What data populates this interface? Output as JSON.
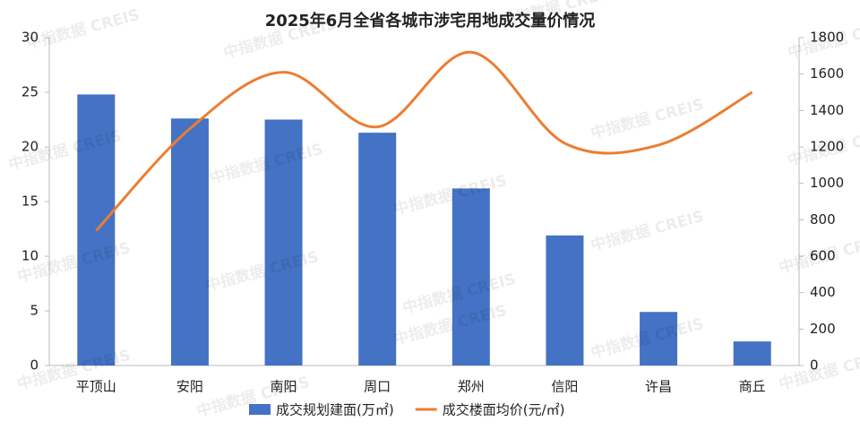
{
  "chart_data": {
    "type": "bar_line",
    "title": "2025年6月全省各城市涉宅用地成交量价情况",
    "watermark": "中指数据 CREIS",
    "categories": [
      "平顶山",
      "安阳",
      "南阳",
      "周口",
      "郑州",
      "信阳",
      "许昌",
      "商丘"
    ],
    "series": [
      {
        "name": "成交规划建面(万㎡)",
        "color": "#4472c4",
        "type": "bar",
        "values": [
          24.8,
          22.6,
          22.5,
          21.3,
          16.2,
          11.9,
          4.9,
          2.2
        ]
      },
      {
        "name": "成交楼面均价(元/㎡)",
        "color": "#ed7d31",
        "type": "line",
        "axis": "y2",
        "smooth": true,
        "values": [
          740,
          1300,
          1610,
          1310,
          1720,
          1220,
          1210,
          1500
        ]
      }
    ],
    "ylim": [
      0,
      30
    ],
    "yticks": [
      0,
      5,
      10,
      15,
      20,
      25,
      30
    ],
    "y2lim": [
      0,
      1800
    ],
    "y2ticks": [
      0,
      200,
      400,
      600,
      800,
      1000,
      1200,
      1400,
      1600,
      1800
    ],
    "legend": "bottom"
  }
}
